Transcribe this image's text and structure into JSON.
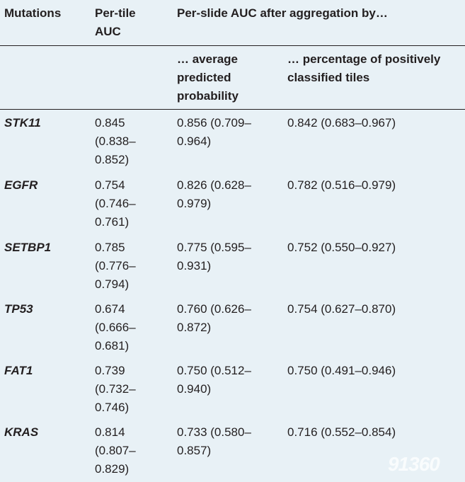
{
  "header": {
    "col1": "Mutations",
    "col2": "Per-tile\nAUC",
    "group": "Per-slide AUC after aggregation by…",
    "sub1": "… average\npredicted\nprobability",
    "sub2": "… percentage of positively\nclassified tiles"
  },
  "rows": [
    {
      "gene": "STK11",
      "tile": "0.845\n(0.838–\n0.852)",
      "avg": "0.856 (0.709–\n0.964)",
      "pct": "0.842 (0.683–0.967)"
    },
    {
      "gene": "EGFR",
      "tile": "0.754\n(0.746–\n0.761)",
      "avg": "0.826 (0.628–\n0.979)",
      "pct": "0.782 (0.516–0.979)"
    },
    {
      "gene": "SETBP1",
      "tile": "0.785\n(0.776–\n0.794)",
      "avg": "0.775 (0.595–\n0.931)",
      "pct": "0.752 (0.550–0.927)"
    },
    {
      "gene": "TP53",
      "tile": "0.674\n(0.666–\n0.681)",
      "avg": "0.760 (0.626–\n0.872)",
      "pct": "0.754 (0.627–0.870)"
    },
    {
      "gene": "FAT1",
      "tile": "0.739\n(0.732–\n0.746)",
      "avg": "0.750 (0.512–\n0.940)",
      "pct": "0.750 (0.491–0.946)"
    },
    {
      "gene": "KRAS",
      "tile": "0.814\n(0.807–\n0.829)",
      "avg": "0.733 (0.580–\n0.857)",
      "pct": "0.716 (0.552–0.854)"
    }
  ],
  "watermark": "91360"
}
